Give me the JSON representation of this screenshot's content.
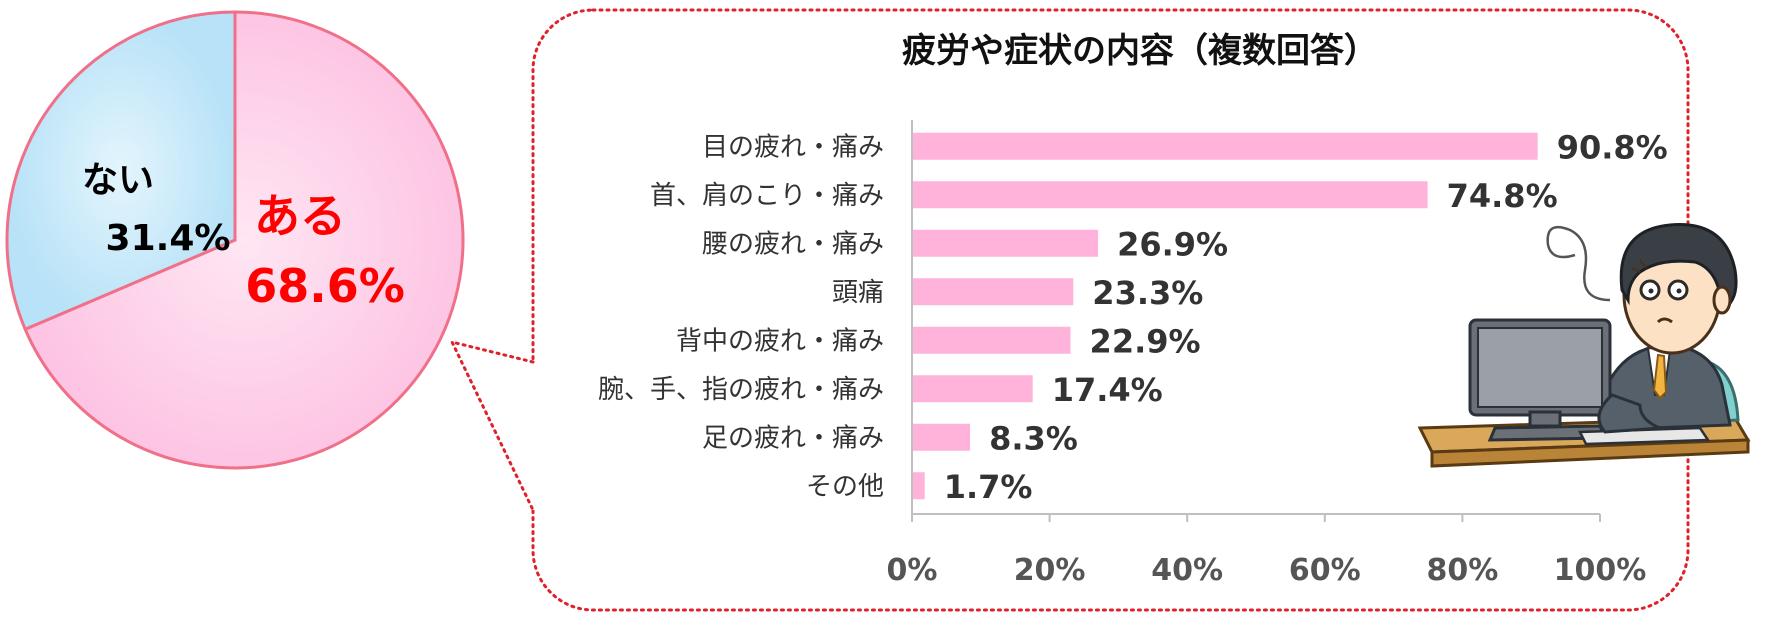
{
  "chart_data": [
    {
      "type": "pie",
      "slices": [
        {
          "label": "ある",
          "value": 68.6,
          "value_label": "68.6%",
          "color": "#fdc9e6",
          "text_color": "#ff0000"
        },
        {
          "label": "ない",
          "value": 31.4,
          "value_label": "31.4%",
          "color": "#bfe6f8",
          "text_color": "#000000"
        }
      ],
      "start_angle_deg": 0,
      "direction": "clockwise",
      "outline_color": "#f0708a"
    },
    {
      "type": "bar",
      "orientation": "horizontal",
      "title": "疲労や症状の内容（複数回答）",
      "categories": [
        "目の疲れ・痛み",
        "首、肩のこり・痛み",
        "腰の疲れ・痛み",
        "頭痛",
        "背中の疲れ・痛み",
        "腕、手、指の疲れ・痛み",
        "足の疲れ・痛み",
        "その他"
      ],
      "values": [
        90.8,
        74.8,
        26.9,
        23.3,
        22.9,
        17.4,
        8.3,
        1.7
      ],
      "value_labels": [
        "90.8%",
        "74.8%",
        "26.9%",
        "23.3%",
        "22.9%",
        "17.4%",
        "8.3%",
        "1.7%"
      ],
      "xlim": [
        0,
        100
      ],
      "x_ticks": [
        0,
        20,
        40,
        60,
        80,
        100
      ],
      "x_tick_labels": [
        "0%",
        "20%",
        "40%",
        "60%",
        "80%",
        "100%"
      ],
      "grid": false,
      "bar_color": "#ffb3da"
    }
  ],
  "callout": {
    "border_color": "#e0202a",
    "style": "dotted"
  },
  "illustration": {
    "name": "tired-office-worker-at-computer"
  }
}
